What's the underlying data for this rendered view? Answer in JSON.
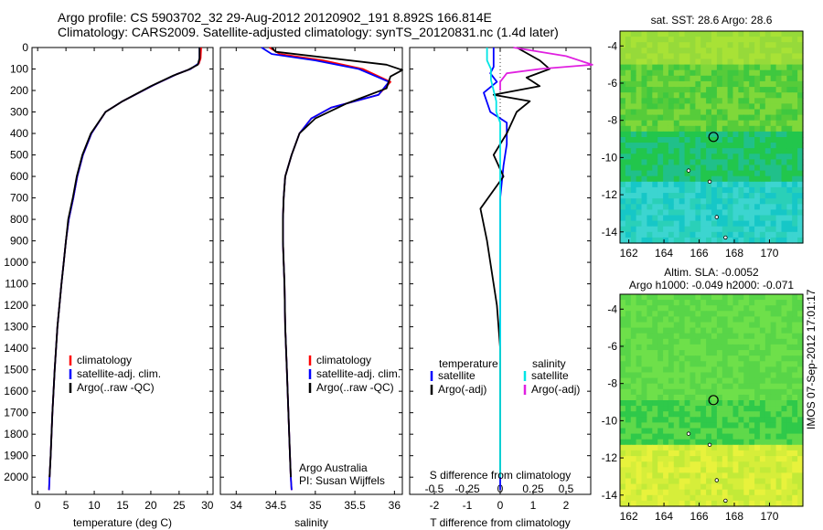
{
  "header": {
    "line1": "Argo profile: CS 5903702_32 29-Aug-2012 20120902_191 8.892S 166.814E",
    "line2": "Climatology: CARS2009. Satellite-adjusted climatology: synTS_20120831.nc (1.4d later)"
  },
  "side_label": "IMOS 07-Sep-2012 17:01:17",
  "colors": {
    "climatology": "#ff0000",
    "satellite": "#0000ff",
    "argo": "#000000",
    "sat_salinity": "#00e5e5",
    "argo_salinity": "#e020e0"
  },
  "chart_data": [
    {
      "type": "line",
      "id": "temperature",
      "xlabel": "temperature (deg C)",
      "ylabel": "",
      "xlim": [
        -1,
        31
      ],
      "ylim": [
        2080,
        0
      ],
      "xticks": [
        0,
        5,
        10,
        15,
        20,
        25,
        30
      ],
      "yticks": [
        0,
        100,
        200,
        300,
        400,
        500,
        600,
        700,
        800,
        900,
        1000,
        1100,
        1200,
        1300,
        1400,
        1500,
        1600,
        1700,
        1800,
        1900,
        2000
      ],
      "legend": [
        "climatology",
        "satellite-adj. clim.",
        "Argo(..raw -QC)"
      ],
      "legend_position": "lower-center",
      "series": [
        {
          "name": "climatology",
          "color": "#ff0000",
          "x": [
            28.9,
            28.8,
            28.5,
            27,
            24.5,
            20.5,
            15,
            12,
            9.5,
            8,
            7,
            6.3,
            5.5,
            5,
            4.6,
            4.2,
            3.5,
            3,
            2.6,
            2.3,
            2.1,
            2.0
          ],
          "y": [
            0,
            50,
            75,
            100,
            125,
            175,
            250,
            300,
            400,
            500,
            600,
            700,
            800,
            900,
            1000,
            1100,
            1300,
            1500,
            1700,
            1900,
            2000,
            2060
          ]
        },
        {
          "name": "satellite-adj. clim.",
          "color": "#0000ff",
          "x": [
            28.6,
            28.6,
            28.4,
            27,
            24.5,
            20.5,
            15,
            12,
            9.5,
            8,
            7,
            6.3,
            5.5,
            5,
            4.6,
            4.2,
            3.5,
            3,
            2.6,
            2.3,
            2.1,
            2.0
          ],
          "y": [
            0,
            50,
            75,
            100,
            125,
            175,
            250,
            300,
            400,
            500,
            600,
            700,
            800,
            900,
            1000,
            1100,
            1300,
            1500,
            1700,
            1900,
            2000,
            2060
          ]
        },
        {
          "name": "Argo(..raw -QC)",
          "color": "#000000",
          "x": [
            28.6,
            28.6,
            28.3,
            26.5,
            24,
            20,
            15,
            12,
            9.4,
            7.9,
            6.9,
            6.2,
            5.4,
            5,
            4.6,
            4.2,
            3.5,
            3,
            2.6,
            2.3,
            2.1
          ],
          "y": [
            0,
            50,
            80,
            105,
            130,
            180,
            250,
            300,
            400,
            500,
            600,
            700,
            800,
            900,
            1000,
            1100,
            1300,
            1500,
            1700,
            1900,
            2000
          ]
        }
      ]
    },
    {
      "type": "line",
      "id": "salinity",
      "xlabel": "salinity",
      "ylabel": "",
      "xlim": [
        33.8,
        36.1
      ],
      "ylim": [
        2080,
        0
      ],
      "xticks": [
        34,
        34.5,
        35,
        35.5,
        36
      ],
      "legend": [
        "climatology",
        "satellite-adj. clim.",
        "Argo(..raw -QC)"
      ],
      "legend_position": "lower-center",
      "annotation": [
        "Argo Australia",
        "PI: Susan Wijffels"
      ],
      "series": [
        {
          "name": "climatology",
          "color": "#ff0000",
          "x": [
            34.42,
            34.55,
            35.1,
            35.6,
            35.95,
            35.8,
            35.2,
            34.95,
            34.8,
            34.7,
            34.62,
            34.6,
            34.59,
            34.59,
            34.6,
            34.61,
            34.62,
            34.64,
            34.66,
            34.68,
            34.69,
            34.7
          ],
          "y": [
            0,
            30,
            60,
            100,
            160,
            220,
            280,
            330,
            400,
            500,
            600,
            700,
            800,
            900,
            1000,
            1100,
            1300,
            1500,
            1700,
            1900,
            2000,
            2060
          ]
        },
        {
          "name": "satellite-adj. clim.",
          "color": "#0000ff",
          "x": [
            34.32,
            34.45,
            35.0,
            35.55,
            35.93,
            35.8,
            35.2,
            34.95,
            34.8,
            34.7,
            34.62,
            34.6,
            34.59,
            34.59,
            34.6,
            34.61,
            34.62,
            34.64,
            34.66,
            34.68,
            34.69,
            34.7
          ],
          "y": [
            0,
            30,
            60,
            100,
            160,
            220,
            280,
            330,
            400,
            500,
            600,
            700,
            800,
            900,
            1000,
            1100,
            1300,
            1500,
            1700,
            1900,
            2000,
            2060
          ]
        },
        {
          "name": "Argo(..raw -QC)",
          "color": "#000000",
          "x": [
            34.45,
            34.5,
            35.9,
            36.1,
            35.95,
            35.9,
            35.4,
            35.0,
            34.8,
            34.7,
            34.62,
            34.6,
            34.59,
            34.59,
            34.6,
            34.61,
            34.62,
            34.64,
            34.66,
            34.68,
            34.69
          ],
          "y": [
            0,
            20,
            80,
            105,
            135,
            190,
            260,
            330,
            400,
            500,
            600,
            700,
            800,
            900,
            1000,
            1100,
            1300,
            1500,
            1700,
            1900,
            2000
          ]
        }
      ]
    },
    {
      "type": "line",
      "id": "difference",
      "xlabel": "T difference from climatology",
      "xlabel2": "S difference from climatology",
      "xlim": [
        -2.75,
        2.75
      ],
      "ylim": [
        2080,
        0
      ],
      "xticks": [
        -2,
        -1,
        0,
        1,
        2
      ],
      "xticks_s": [
        -0.5,
        -0.25,
        0,
        0.25,
        0.5
      ],
      "legend_left_title": "temperature",
      "legend_right_title": "salinity",
      "legend": [
        "satellite",
        "Argo(-adj)",
        "satellite",
        "Argo(-adj)"
      ],
      "legend_position": "lower-center",
      "series": [
        {
          "name": "temperature satellite",
          "color": "#0000ff",
          "x": [
            -0.2,
            -0.2,
            -0.2,
            -0.3,
            -0.1,
            -0.5,
            -0.3,
            0.2,
            0.2,
            0.1,
            0,
            0,
            0,
            0,
            0,
            0,
            0,
            0,
            0,
            0
          ],
          "y": [
            0,
            50,
            90,
            120,
            160,
            210,
            300,
            350,
            450,
            550,
            700,
            800,
            900,
            1000,
            1200,
            1400,
            1600,
            1800,
            2000,
            2060
          ]
        },
        {
          "name": "temperature Argo(-adj)",
          "color": "#000000",
          "x": [
            0.5,
            1.2,
            1.5,
            0.8,
            1.2,
            -0.2,
            0.9,
            0.5,
            0.2,
            -0.2,
            0.1,
            -0.6,
            -0.4,
            -0.2,
            -0.1,
            0,
            0,
            0,
            0
          ],
          "y": [
            0,
            60,
            100,
            140,
            180,
            220,
            250,
            300,
            400,
            500,
            600,
            750,
            900,
            1100,
            1200,
            1400,
            1600,
            1800,
            2000
          ]
        },
        {
          "name": "salinity satellite",
          "color": "#00e5e5",
          "x": [
            -0.1,
            -0.1,
            -0.07,
            -0.07,
            -0.03,
            -0.03,
            0,
            0,
            0,
            0,
            0,
            0,
            0,
            0,
            0,
            0,
            0,
            0,
            0
          ],
          "y": [
            0,
            60,
            100,
            150,
            250,
            300,
            350,
            400,
            500,
            600,
            700,
            800,
            900,
            1000,
            1200,
            1400,
            1600,
            1800,
            2000
          ]
        },
        {
          "name": "salinity Argo(-adj)",
          "color": "#e020e0",
          "x": [
            0.1,
            0.5,
            0.7,
            0.3,
            0.05,
            0,
            0
          ],
          "y": [
            0,
            40,
            80,
            100,
            120,
            160,
            200
          ]
        }
      ]
    }
  ],
  "maps": [
    {
      "id": "sst-map",
      "title": "sat. SST: 28.6 Argo: 28.6",
      "xticks": [
        162,
        164,
        166,
        168,
        170
      ],
      "yticks": [
        -4,
        -6,
        -8,
        -10,
        -12,
        -14
      ],
      "xlim": [
        161.5,
        171.9
      ],
      "ylim": [
        -3.2,
        -14.6
      ],
      "marker": {
        "lon": 166.814,
        "lat": -8.892
      }
    },
    {
      "id": "sla-map",
      "title": "Altim. SLA: -0.0052",
      "title2": "Argo h1000: -0.049 h2000: -0.071",
      "xticks": [
        162,
        164,
        166,
        168,
        170
      ],
      "yticks": [
        -4,
        -6,
        -8,
        -10,
        -12,
        -14
      ],
      "xlim": [
        161.5,
        171.9
      ],
      "ylim": [
        -3.2,
        -14.6
      ],
      "marker": {
        "lon": 166.814,
        "lat": -8.892
      }
    }
  ]
}
